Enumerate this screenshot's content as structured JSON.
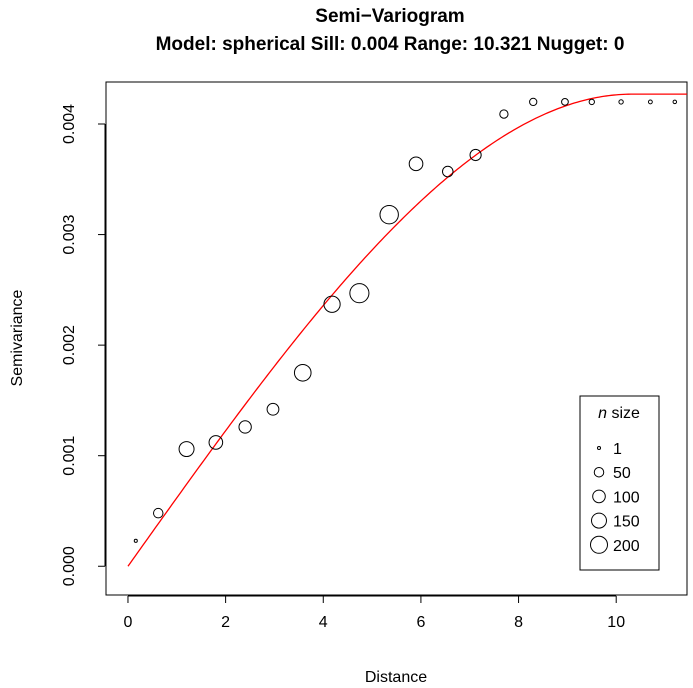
{
  "chart_data": {
    "type": "scatter",
    "title": "Semi−Variogram",
    "subtitle": "Model: spherical Sill: 0.004 Range: 10.321 Nugget: 0",
    "xlabel": "Distance",
    "ylabel": "Semivariance",
    "xlim": [
      -0.45,
      11.45
    ],
    "ylim": [
      -0.00026,
      0.00438
    ],
    "x_ticks": [
      "0",
      "2",
      "4",
      "6",
      "8",
      "10"
    ],
    "y_ticks": [
      "0.000",
      "0.001",
      "0.002",
      "0.003",
      "0.004"
    ],
    "x_tick_values": [
      0,
      2,
      4,
      6,
      8,
      10
    ],
    "y_tick_values": [
      0,
      0.001,
      0.002,
      0.003,
      0.004
    ],
    "grid": false,
    "point_color": "#000000",
    "model_color": "#ff0000",
    "points": [
      {
        "x": 0.16,
        "y": 0.00023,
        "n": 1
      },
      {
        "x": 0.62,
        "y": 0.00048,
        "n": 50
      },
      {
        "x": 1.2,
        "y": 0.00106,
        "n": 150
      },
      {
        "x": 1.8,
        "y": 0.00112,
        "n": 120
      },
      {
        "x": 2.4,
        "y": 0.00126,
        "n": 95
      },
      {
        "x": 2.97,
        "y": 0.00142,
        "n": 85
      },
      {
        "x": 3.58,
        "y": 0.00175,
        "n": 190
      },
      {
        "x": 4.18,
        "y": 0.00237,
        "n": 180
      },
      {
        "x": 4.74,
        "y": 0.00247,
        "n": 260
      },
      {
        "x": 5.35,
        "y": 0.00318,
        "n": 240
      },
      {
        "x": 5.9,
        "y": 0.00364,
        "n": 120
      },
      {
        "x": 6.55,
        "y": 0.00357,
        "n": 65
      },
      {
        "x": 7.12,
        "y": 0.00372,
        "n": 75
      },
      {
        "x": 7.7,
        "y": 0.00409,
        "n": 35
      },
      {
        "x": 8.3,
        "y": 0.0042,
        "n": 25
      },
      {
        "x": 8.95,
        "y": 0.0042,
        "n": 20
      },
      {
        "x": 9.5,
        "y": 0.0042,
        "n": 10
      },
      {
        "x": 10.1,
        "y": 0.0042,
        "n": 5
      },
      {
        "x": 10.7,
        "y": 0.0042,
        "n": 3
      },
      {
        "x": 11.2,
        "y": 0.0042,
        "n": 2
      }
    ],
    "model": {
      "type": "spherical",
      "sill": 0.00427,
      "range": 10.321,
      "nugget": 0
    },
    "legend": {
      "position": "bottom-right",
      "title_italic": "n",
      "title_rest": " size",
      "entries": [
        {
          "label": "1",
          "n": 1
        },
        {
          "label": "50",
          "n": 50
        },
        {
          "label": "100",
          "n": 100
        },
        {
          "label": "150",
          "n": 150
        },
        {
          "label": "200",
          "n": 200
        }
      ]
    }
  }
}
